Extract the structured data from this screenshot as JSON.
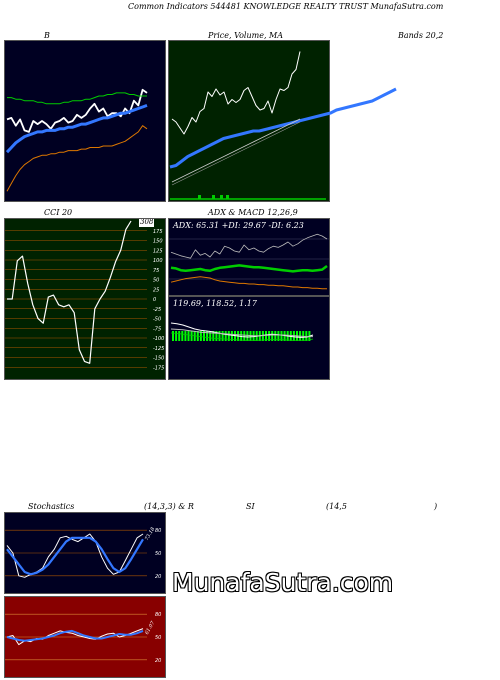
{
  "header": {
    "title": "Common Indicators 544481 KNOWLEDGE REALTY TRUST MunafaSutra.com"
  },
  "labels": {
    "bollinger": "B",
    "price_volume_ma": "Price, Volume, MA",
    "bands": "Bands 20,2",
    "cci": "CCI 20",
    "adx_macd": "ADX & MACD 12,26,9",
    "stochastics": "Stochastics",
    "stoch_params": "(14,3,3) & R",
    "rsi": "SI",
    "rsi_params": "(14,5",
    "rsi_close": ")"
  },
  "cci": {
    "current": "308"
  },
  "adx": {
    "line": "ADX: 65.31 +DI: 29.67 -DI: 6.23"
  },
  "macd": {
    "line": "119.69, 118.52, 1.17"
  },
  "stoch": {
    "current": "73.18"
  },
  "rsi_panel": {
    "current": "61.07"
  },
  "brand": "MunafaSutra.com",
  "colors": {
    "dark_panel": "#000022",
    "price_panel": "#002200",
    "rsi_panel": "#880000",
    "grid_orange": "#aa5500",
    "accent_blue": "#3377ff",
    "accent_green": "#00cc00",
    "accent_orange": "#dd7700"
  },
  "chart_data": [
    {
      "type": "line",
      "panel": "bollinger",
      "ylim": [
        0,
        100
      ],
      "series": [
        {
          "color": "#ffffff",
          "values": [
            51,
            52,
            47,
            51,
            44,
            43,
            50,
            48,
            50,
            48,
            45,
            49,
            50,
            52,
            49,
            50,
            54,
            52,
            54,
            58,
            61,
            56,
            58,
            53,
            55,
            55,
            53,
            58,
            55,
            63,
            60,
            70,
            68
          ]
        },
        {
          "color": "#3377ff",
          "values": [
            30,
            33,
            36,
            38,
            40,
            41,
            42,
            43,
            43,
            44,
            44,
            44,
            45,
            45,
            46,
            46,
            47,
            48,
            48,
            49,
            50,
            51,
            52,
            52,
            53,
            54,
            55,
            55,
            56,
            57,
            58,
            59,
            60
          ]
        },
        {
          "color": "#00cc00",
          "values": [
            65,
            65,
            64,
            64,
            63,
            63,
            63,
            62,
            62,
            61,
            61,
            61,
            61,
            62,
            62,
            63,
            63,
            63,
            64,
            64,
            65,
            66,
            66,
            67,
            67,
            68,
            68,
            68,
            67,
            67,
            66,
            66,
            66
          ]
        },
        {
          "color": "#dd7700",
          "values": [
            5,
            10,
            15,
            19,
            22,
            24,
            26,
            27,
            28,
            28,
            29,
            29,
            30,
            30,
            31,
            31,
            31,
            32,
            32,
            33,
            33,
            33,
            34,
            34,
            34,
            35,
            36,
            37,
            39,
            41,
            43,
            47,
            45
          ]
        }
      ]
    },
    {
      "type": "line",
      "panel": "price_volume_ma",
      "ylim": [
        0,
        100
      ],
      "series": [
        {
          "color": "#ffffff",
          "values": [
            50,
            48,
            44,
            40,
            45,
            51,
            48,
            55,
            57,
            68,
            65,
            70,
            66,
            68,
            60,
            63,
            61,
            63,
            69,
            71,
            65,
            59,
            56,
            57,
            62,
            54,
            63,
            70,
            69,
            71,
            80,
            83,
            95
          ]
        },
        {
          "color": "#3377ff",
          "values": [
            18,
            19,
            22,
            25,
            27,
            29,
            31,
            33,
            35,
            37,
            38,
            39,
            40,
            41,
            42,
            42,
            43,
            44,
            45,
            46,
            47,
            48,
            49,
            50,
            51,
            52,
            53,
            54,
            56,
            57,
            58,
            59,
            60,
            61,
            62,
            64,
            66,
            68,
            70
          ]
        },
        {
          "color": "#cccccc",
          "values": [
            8,
            10,
            12,
            14,
            16,
            18,
            20,
            22,
            24,
            26,
            28,
            30,
            32,
            34,
            36,
            38,
            40,
            42,
            44,
            46,
            48,
            50
          ]
        }
      ]
    },
    {
      "type": "line",
      "panel": "cci",
      "ylim": [
        -200,
        200
      ],
      "series": [
        {
          "color": "#ffffff",
          "values": [
            0,
            0,
            98,
            110,
            40,
            -15,
            -50,
            -62,
            5,
            10,
            -15,
            -20,
            -15,
            -35,
            -130,
            -160,
            -165,
            -25,
            0,
            20,
            55,
            95,
            125,
            178,
            200
          ]
        }
      ]
    },
    {
      "type": "line",
      "panel": "adx",
      "ylim": [
        0,
        100
      ],
      "series": [
        {
          "color": "#bbbbbb",
          "values": [
            68,
            65,
            62,
            60,
            58,
            72,
            63,
            66,
            60,
            70,
            65,
            78,
            75,
            70,
            68,
            80,
            72,
            75,
            70,
            68,
            74,
            78,
            76,
            80,
            85,
            78,
            82,
            88,
            92,
            95,
            98,
            95,
            90
          ]
        },
        {
          "color": "#00cc00",
          "values": [
            42,
            41,
            38,
            37,
            38,
            39,
            40,
            38,
            37,
            40,
            42,
            43,
            44,
            45,
            46,
            45,
            44,
            43,
            43,
            42,
            41,
            40,
            39,
            38,
            37,
            36,
            37,
            38,
            38,
            37,
            38,
            39,
            45
          ]
        },
        {
          "color": "#dd7700",
          "values": [
            18,
            20,
            22,
            24,
            25,
            26,
            27,
            26,
            25,
            22,
            20,
            19,
            18,
            17,
            16,
            16,
            15,
            15,
            14,
            14,
            13,
            13,
            12,
            12,
            11,
            10,
            10,
            9,
            9,
            8,
            8,
            7,
            7
          ]
        }
      ]
    },
    {
      "type": "line",
      "panel": "macd",
      "ylim": [
        0,
        100
      ],
      "series": [
        {
          "color": "#ffffff",
          "values": [
            70,
            68,
            65,
            60,
            55,
            52,
            50,
            48,
            45,
            42,
            40,
            38,
            36,
            35,
            36,
            38,
            40,
            42,
            41,
            39,
            37,
            35,
            34,
            35,
            40
          ]
        },
        {
          "color": "#bbbbbb",
          "values": [
            55,
            54,
            53,
            51,
            49,
            47,
            46,
            45,
            44,
            43,
            42,
            41,
            40,
            39,
            38,
            38,
            39,
            40,
            40,
            40,
            39,
            38,
            37,
            36,
            36
          ]
        },
        {
          "color": "#00cc00",
          "values": [
            45,
            44,
            42,
            40,
            38,
            36,
            34,
            32,
            31,
            30,
            29,
            28,
            27,
            26,
            26,
            27,
            28,
            29,
            29,
            28,
            27,
            26,
            26,
            27,
            30
          ]
        }
      ]
    },
    {
      "type": "line",
      "panel": "stochastics",
      "ylim": [
        0,
        100
      ],
      "series": [
        {
          "color": "#ffffff",
          "values": [
            60,
            50,
            20,
            18,
            22,
            25,
            30,
            45,
            55,
            70,
            72,
            68,
            65,
            70,
            75,
            65,
            45,
            30,
            22,
            25,
            40,
            55,
            70,
            75
          ]
        },
        {
          "color": "#3377ff",
          "values": [
            55,
            45,
            35,
            25,
            22,
            24,
            28,
            35,
            45,
            55,
            65,
            70,
            70,
            70,
            70,
            65,
            55,
            42,
            30,
            25,
            30,
            42,
            55,
            68
          ]
        }
      ]
    },
    {
      "type": "line",
      "panel": "rsi",
      "ylim": [
        0,
        100
      ],
      "series": [
        {
          "color": "#ffffff",
          "values": [
            50,
            52,
            40,
            45,
            44,
            48,
            47,
            52,
            55,
            58,
            56,
            55,
            52,
            50,
            48,
            47,
            51,
            54,
            55,
            50,
            52,
            55,
            58,
            61
          ]
        },
        {
          "color": "#3377ff",
          "values": [
            50,
            48,
            46,
            45,
            46,
            47,
            48,
            50,
            52,
            55,
            57,
            58,
            55,
            52,
            50,
            48,
            48,
            50,
            52,
            54,
            53,
            53,
            55,
            58
          ]
        }
      ]
    }
  ]
}
